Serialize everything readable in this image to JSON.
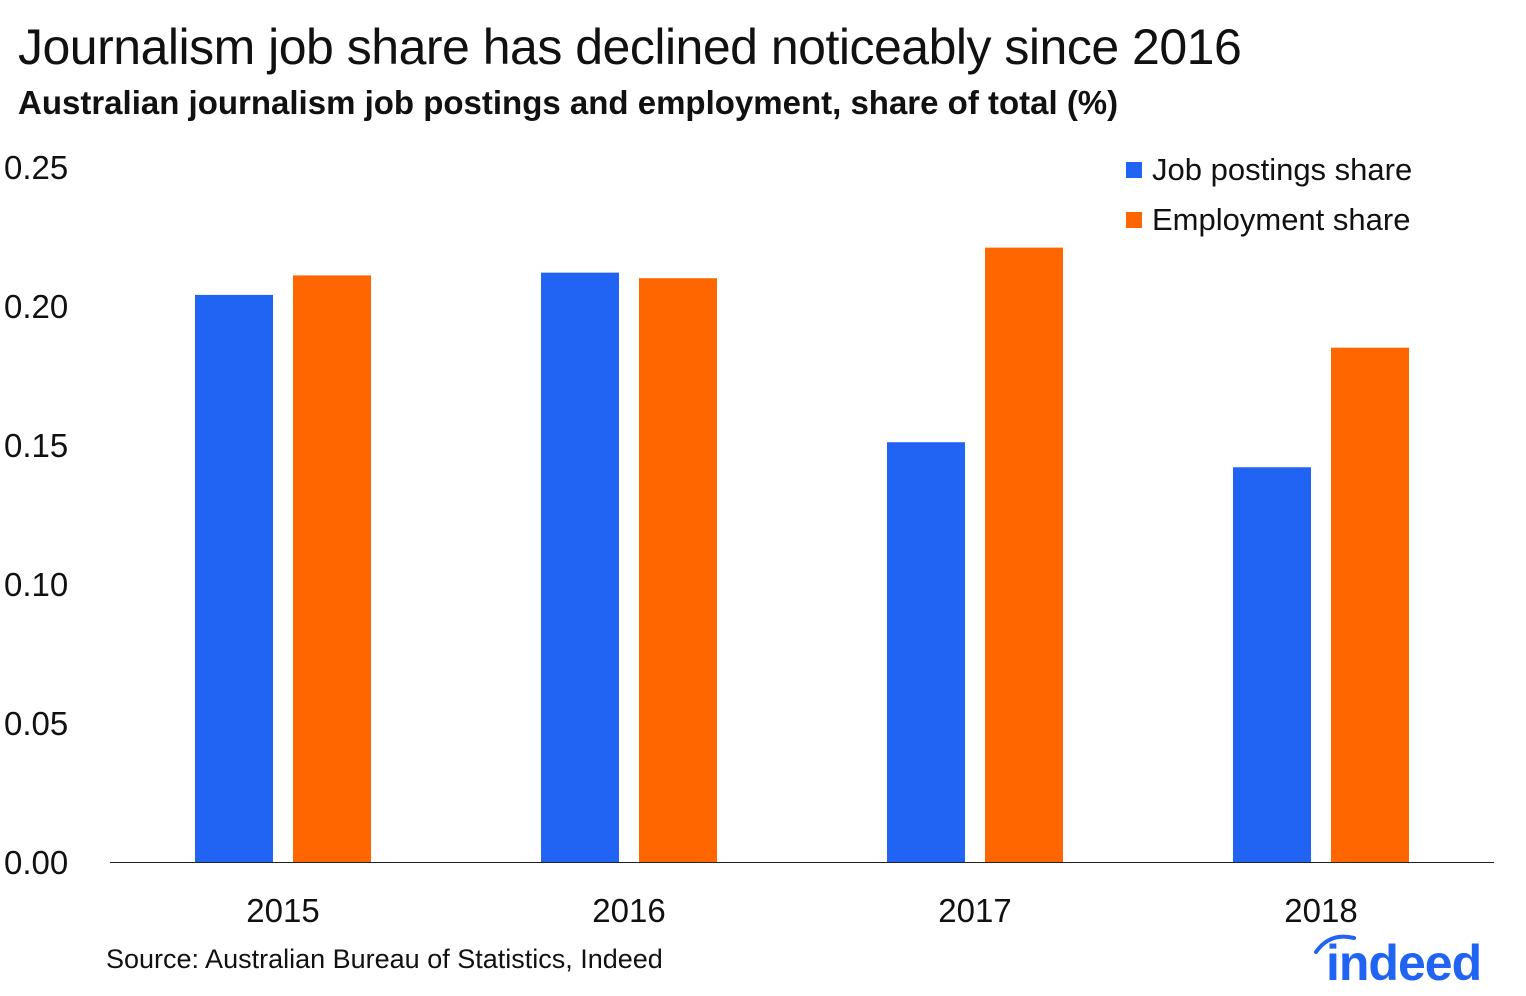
{
  "chart_data": {
    "type": "bar",
    "title": "Journalism job share has declined noticeably since 2016",
    "subtitle": "Australian journalism job postings and employment, share of total (%)",
    "categories": [
      "2015",
      "2016",
      "2017",
      "2018"
    ],
    "series": [
      {
        "name": "Job postings share",
        "values": [
          0.204,
          0.212,
          0.151,
          0.142
        ],
        "color": "#2164F3"
      },
      {
        "name": "Employment share",
        "values": [
          0.211,
          0.21,
          0.221,
          0.185
        ],
        "color": "#FF6600"
      }
    ],
    "ylim": [
      0,
      0.25
    ],
    "yticks": [
      "0.00",
      "0.05",
      "0.10",
      "0.15",
      "0.20",
      "0.25"
    ],
    "xlabel": "",
    "ylabel": "",
    "grid": false,
    "legend_position": "top-right",
    "source": "Source: Australian Bureau of Statistics, Indeed"
  },
  "logo": {
    "text": "indeed",
    "color": "#2164F3"
  }
}
